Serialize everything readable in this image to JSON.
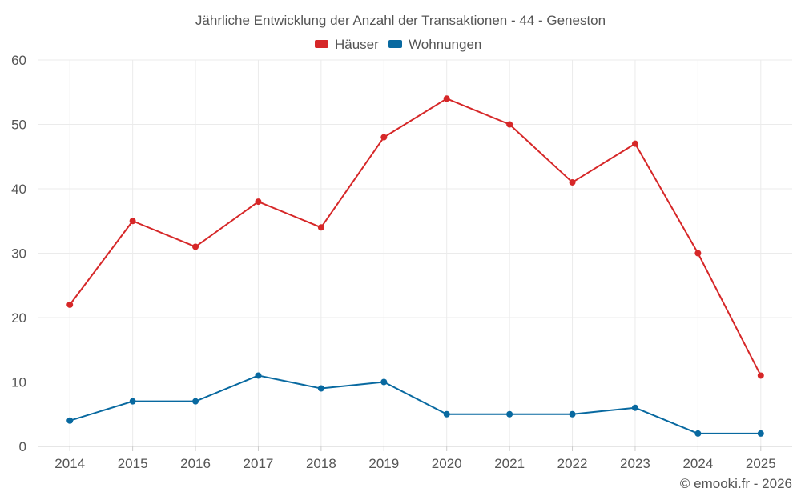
{
  "chart_data": {
    "type": "line",
    "title": "Jährliche Entwicklung der Anzahl der Transaktionen - 44 - Geneston",
    "xlabel": "",
    "ylabel": "",
    "categories": [
      "2014",
      "2015",
      "2016",
      "2017",
      "2018",
      "2019",
      "2020",
      "2021",
      "2022",
      "2023",
      "2024",
      "2025"
    ],
    "ylim": [
      0,
      60
    ],
    "yticks": [
      0,
      10,
      20,
      30,
      40,
      50,
      60
    ],
    "grid": true,
    "legend_position": "top-center",
    "series": [
      {
        "name": "Häuser",
        "color": "#d62728",
        "values": [
          22,
          35,
          31,
          38,
          34,
          48,
          54,
          50,
          41,
          47,
          30,
          11
        ]
      },
      {
        "name": "Wohnungen",
        "color": "#0869a0",
        "values": [
          4,
          7,
          7,
          11,
          9,
          10,
          5,
          5,
          5,
          6,
          2,
          2
        ]
      }
    ]
  },
  "footer": {
    "copyright": "© emooki.fr - 2026"
  },
  "colors": {
    "grid": "#ebebeb",
    "axis_text": "#555555",
    "title_text": "#555555"
  }
}
